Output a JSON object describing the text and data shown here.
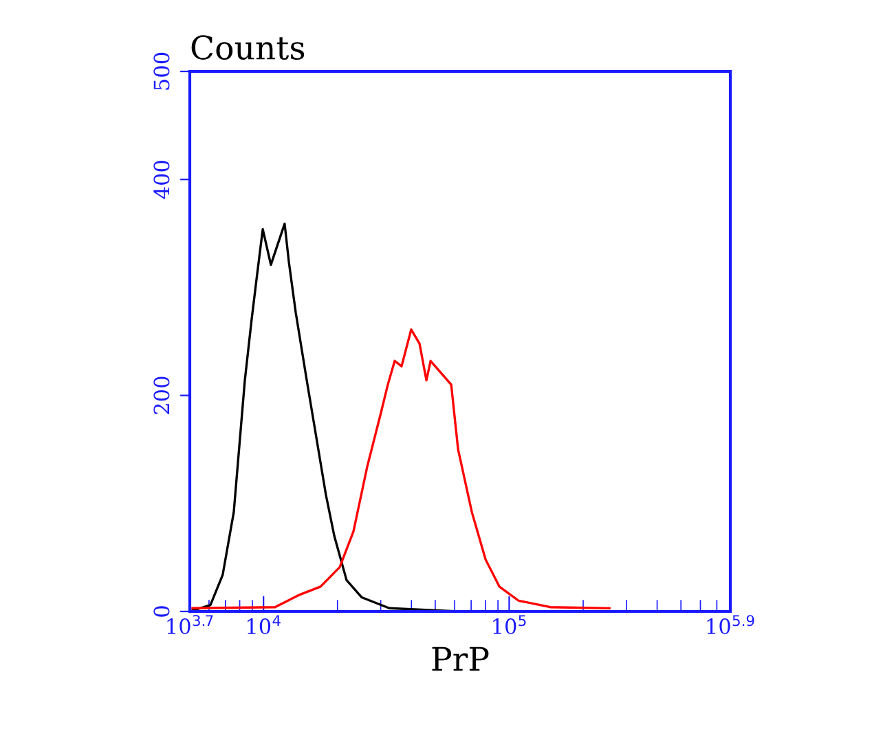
{
  "chart_data": {
    "type": "line",
    "ylabel": "Counts",
    "xlabel": "PrP",
    "log": "x",
    "xlim": [
      5012,
      794328
    ],
    "xticks": [
      {
        "value": 5012,
        "label": "10$^{3.7}$"
      },
      {
        "value": 10000,
        "label": "10$^{4}$"
      },
      {
        "value": 100000,
        "label": "10$^{5}$"
      },
      {
        "value": 794328,
        "label": "10$^{5.9}$"
      }
    ],
    "ylim": [
      0,
      500
    ],
    "yticks": [
      0,
      200,
      400,
      500
    ],
    "grid": false,
    "legend": false,
    "series": [
      {
        "color": "#000000",
        "x": [
          5012,
          6081,
          6823,
          7568,
          8395,
          8954,
          9419,
          9931,
          10715,
          12190,
          12677,
          13521,
          14997,
          15996,
          17947,
          19409,
          21777,
          25119,
          32509,
          61944,
          291072
        ],
        "values": [
          0,
          6,
          34,
          92,
          214,
          271,
          312,
          354,
          321,
          359,
          324,
          277,
          214,
          176,
          108,
          70,
          29,
          13,
          3,
          0,
          0
        ]
      },
      {
        "color": "#ff0000",
        "x": [
          5140,
          11143,
          13868,
          17061,
          20417,
          23227,
          26424,
          30061,
          32063,
          34198,
          36475,
          39902,
          43152,
          46026,
          47863,
          58076,
          61944,
          70469,
          80168,
          91201,
          109144,
          146893,
          255859
        ],
        "values": [
          3,
          4,
          15,
          23,
          41,
          74,
          134,
          184,
          210,
          232,
          227,
          261,
          248,
          214,
          232,
          210,
          150,
          92,
          48,
          23,
          10,
          4,
          3
        ]
      }
    ]
  }
}
